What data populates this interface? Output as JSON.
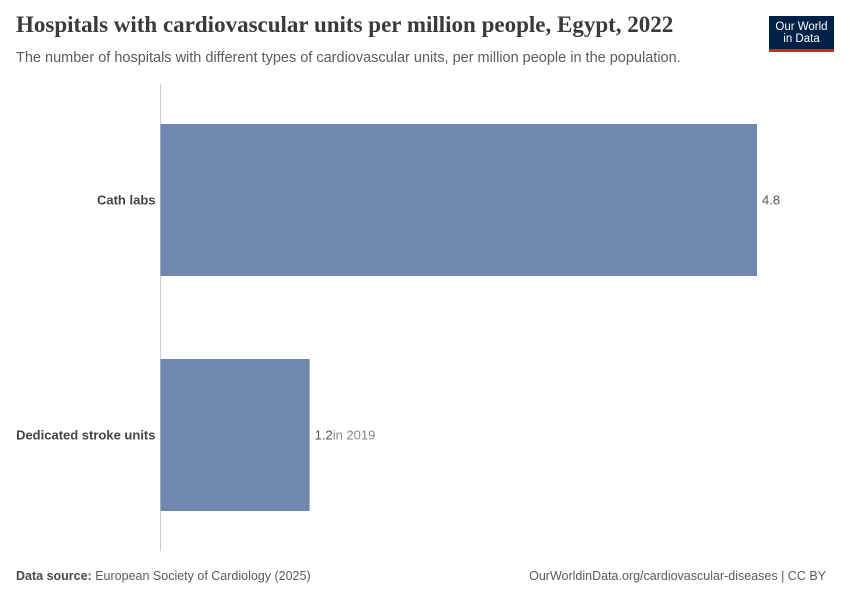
{
  "header": {
    "title": "Hospitals with cardiovascular units per million people, Egypt, 2022",
    "subtitle": "The number of hospitals with different types of cardiovascular units, per million people in the population."
  },
  "logo": {
    "line1": "Our World",
    "line2": "in Data"
  },
  "footer": {
    "source_label": "Data source:",
    "source_text": "European Society of Cardiology (2025)",
    "url_license": "OurWorldinData.org/cardiovascular-diseases | CC BY"
  },
  "colors": {
    "bar": "#7087b0",
    "axis": "#cccccc",
    "text": "#3a3a3a",
    "note": "#858585"
  },
  "chart_data": {
    "type": "bar",
    "orientation": "horizontal",
    "title": "Hospitals with cardiovascular units per million people, Egypt, 2022",
    "categories": [
      "Cath labs",
      "Dedicated stroke units"
    ],
    "values": [
      4.8,
      1.2
    ],
    "value_labels": [
      "4.8",
      "1.2"
    ],
    "notes": [
      "",
      "in 2019"
    ],
    "xlim": [
      0,
      4.8
    ],
    "xlabel": "",
    "ylabel": ""
  }
}
